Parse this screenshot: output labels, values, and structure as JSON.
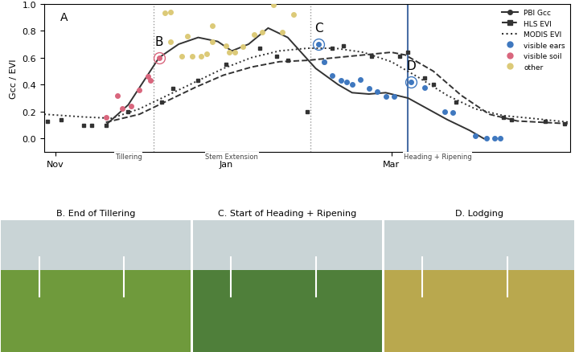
{
  "chart_data": {
    "type": "line",
    "panel_label": "A",
    "y_label": "Gcc / EVI",
    "xlim": [
      -4,
      184
    ],
    "ylim": [
      -0.1,
      1.0
    ],
    "xticks": [
      {
        "value": 0,
        "label": "Nov"
      },
      {
        "value": 61,
        "label": "Jan"
      },
      {
        "value": 120,
        "label": "Mar"
      }
    ],
    "yticks": [
      {
        "value": 0.0,
        "label": "0.0"
      },
      {
        "value": 0.2,
        "label": "0.2"
      },
      {
        "value": 0.4,
        "label": "0.4"
      },
      {
        "value": 0.6,
        "label": "0.6"
      },
      {
        "value": 0.8,
        "label": "0.8"
      },
      {
        "value": 1.0,
        "label": "1.0"
      }
    ],
    "grid": false,
    "legend": "upper right",
    "series": [
      {
        "name": "PBI Gcc",
        "type": "line",
        "color": "#333333",
        "line_style": "solid",
        "marker": "o",
        "x": [
          18,
          26,
          37,
          44,
          51,
          58,
          63,
          69,
          76,
          83,
          93,
          101,
          106,
          112,
          118,
          126,
          133,
          140,
          148,
          153
        ],
        "values": [
          0.1,
          0.25,
          0.6,
          0.7,
          0.75,
          0.72,
          0.65,
          0.7,
          0.82,
          0.75,
          0.52,
          0.4,
          0.34,
          0.33,
          0.34,
          0.3,
          0.22,
          0.14,
          0.06,
          0.0
        ]
      },
      {
        "name": "HLS EVI",
        "type": "line",
        "color": "#333333",
        "line_style": "dashed",
        "marker": "s",
        "x": [
          18,
          30,
          40,
          50,
          60,
          70,
          80,
          90,
          100,
          110,
          120,
          125,
          135,
          145,
          155,
          165,
          183
        ],
        "values": [
          0.12,
          0.18,
          0.28,
          0.38,
          0.47,
          0.53,
          0.57,
          0.58,
          0.6,
          0.62,
          0.64,
          0.62,
          0.5,
          0.32,
          0.18,
          0.13,
          0.11
        ],
        "observations": {
          "x": [
            -3,
            2,
            10,
            13,
            18,
            26,
            38,
            42,
            51,
            61,
            73,
            79,
            83,
            90,
            96,
            99,
            103,
            113,
            123,
            126,
            132,
            135,
            143,
            160,
            163,
            175,
            182
          ],
          "values": [
            0.13,
            0.14,
            0.1,
            0.1,
            0.1,
            0.2,
            0.27,
            0.37,
            0.43,
            0.55,
            0.67,
            0.61,
            0.58,
            0.2,
            0.57,
            0.67,
            0.69,
            0.61,
            0.61,
            0.64,
            0.45,
            0.4,
            0.27,
            0.16,
            0.14,
            0.13,
            0.11
          ]
        }
      },
      {
        "name": "MODIS EVI",
        "type": "line",
        "color": "#333333",
        "line_style": "dotted",
        "x": [
          -4,
          10,
          20,
          30,
          40,
          50,
          60,
          70,
          80,
          90,
          100,
          110,
          120,
          130,
          140,
          150,
          160,
          170,
          184
        ],
        "values": [
          0.18,
          0.16,
          0.15,
          0.22,
          0.32,
          0.42,
          0.52,
          0.6,
          0.65,
          0.67,
          0.67,
          0.64,
          0.57,
          0.45,
          0.32,
          0.22,
          0.17,
          0.15,
          0.12
        ]
      },
      {
        "name": "visible ears",
        "type": "scatter",
        "color": "#3f78bf",
        "x": [
          94,
          96,
          99,
          102,
          104,
          106,
          109,
          112,
          115,
          118,
          121,
          127,
          132,
          139,
          142,
          150,
          154,
          157,
          159
        ],
        "values": [
          0.7,
          0.57,
          0.47,
          0.43,
          0.42,
          0.4,
          0.44,
          0.37,
          0.35,
          0.31,
          0.31,
          0.42,
          0.38,
          0.2,
          0.19,
          0.02,
          0.0,
          0.0,
          0.0
        ]
      },
      {
        "name": "visible soil",
        "type": "scatter",
        "color": "#d9667d",
        "x": [
          18,
          22,
          24,
          27,
          30,
          33,
          34,
          37
        ],
        "values": [
          0.16,
          0.32,
          0.22,
          0.24,
          0.36,
          0.46,
          0.43,
          0.6
        ]
      },
      {
        "name": "other",
        "type": "scatter",
        "color": "#dcca78",
        "x": [
          39,
          41,
          41,
          45,
          47,
          49,
          52,
          54,
          56,
          56,
          61,
          62,
          64,
          67,
          71,
          74,
          78,
          81,
          85
        ],
        "values": [
          0.93,
          0.94,
          0.72,
          0.61,
          0.76,
          0.61,
          0.61,
          0.63,
          0.72,
          0.84,
          0.69,
          0.64,
          0.64,
          0.68,
          0.77,
          0.79,
          0.99,
          0.79,
          0.92
        ]
      }
    ],
    "annotations": [
      {
        "text": "B",
        "x": 37,
        "y": 0.6,
        "color": "#d9667d"
      },
      {
        "text": "C",
        "x": 94,
        "y": 0.7,
        "color": "#3f78bf"
      },
      {
        "text": "D",
        "x": 127,
        "y": 0.42,
        "color": "#3f78bf"
      }
    ],
    "phase_boundaries": [
      35,
      91
    ],
    "highlight_date": 126,
    "phases": [
      {
        "label": "Tillering",
        "start": 17,
        "end": 35
      },
      {
        "label": "Stem Extension",
        "start": 35,
        "end": 91
      },
      {
        "label": "Heading + Ripening",
        "start": 91,
        "end": 182
      }
    ]
  },
  "photos": [
    {
      "title": "B. End of Tillering",
      "color": "#6f9a3c"
    },
    {
      "title": "C. Start of Heading + Ripening",
      "color": "#4f7f3a"
    },
    {
      "title": "D. Lodging",
      "color": "#b9a84e"
    }
  ]
}
